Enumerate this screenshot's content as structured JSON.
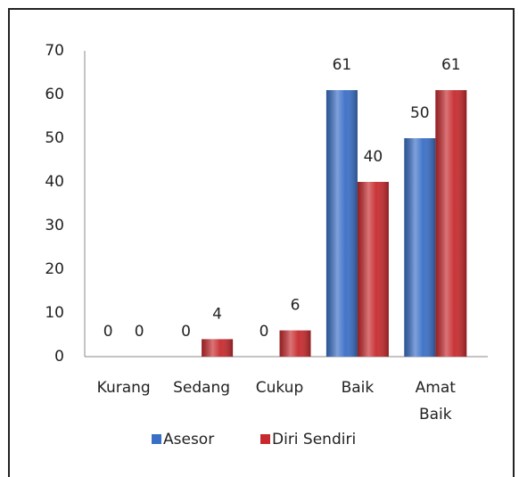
{
  "chart_data": {
    "type": "bar",
    "categories": [
      "Kurang",
      "Sedang",
      "Cukup",
      "Baik",
      "Amat Baik"
    ],
    "series": [
      {
        "name": "Asesor",
        "color": "#3a6fc6",
        "values": [
          0,
          0,
          0,
          61,
          50
        ]
      },
      {
        "name": "Diri Sendiri",
        "color": "#c62a2e",
        "values": [
          0,
          4,
          6,
          40,
          61
        ]
      }
    ],
    "ylim": [
      0,
      70
    ],
    "yticks": [
      0,
      10,
      20,
      30,
      40,
      50,
      60,
      70
    ],
    "grid": false,
    "legend": "bottom"
  }
}
